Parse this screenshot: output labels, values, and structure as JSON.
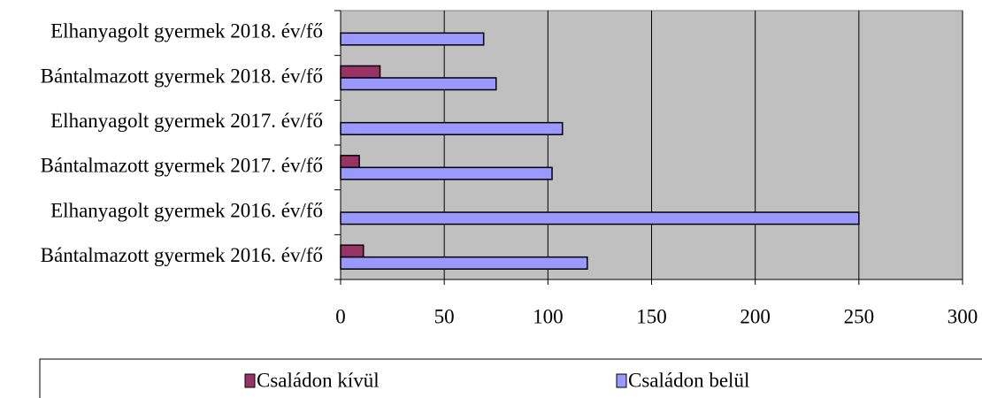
{
  "chart_data": {
    "type": "hbar",
    "categories": [
      "Bántalmazott gyermek 2016. év/fő",
      "Elhanyagolt gyermek 2016. év/fő",
      "Bántalmazott gyermek 2017. év/fő",
      "Elhanyagolt gyermek 2017. év/fő",
      "Bántalmazott gyermek 2018. év/fő",
      "Elhanyagolt gyermek 2018. év/fő"
    ],
    "series": [
      {
        "name": "Családon kívül",
        "color": "#993366",
        "values": [
          11,
          0,
          9,
          0,
          19,
          0
        ]
      },
      {
        "name": "Családon belül",
        "color": "#9999ff",
        "values": [
          119,
          250,
          102,
          107,
          75,
          69
        ]
      }
    ],
    "xlim": [
      0,
      300
    ],
    "xticks": [
      0,
      50,
      100,
      150,
      200,
      250,
      300
    ],
    "grid": true,
    "legend": "bottom"
  }
}
